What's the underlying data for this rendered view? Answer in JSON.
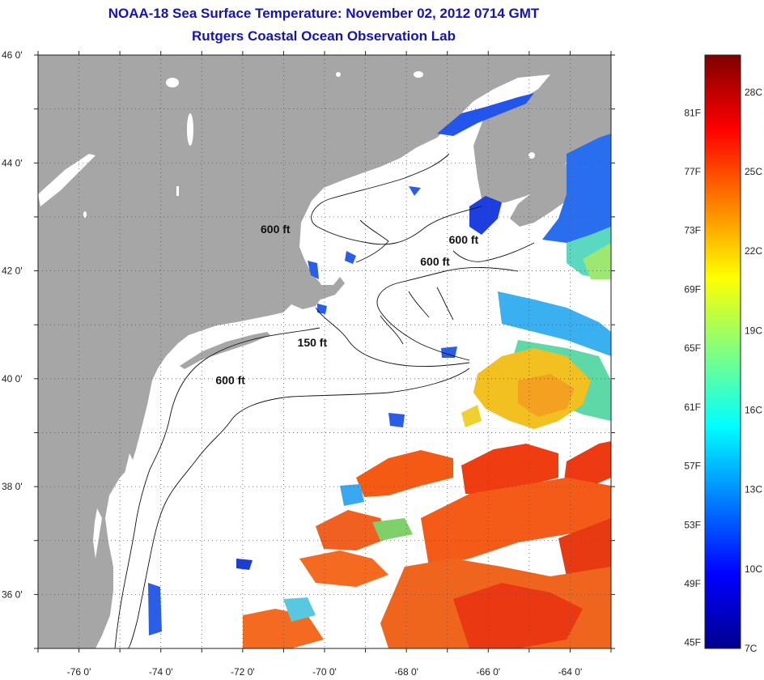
{
  "header": {
    "title": "NOAA-18 Sea Surface Temperature:  November 02, 2012 0714 GMT",
    "subtitle": "Rutgers Coastal Ocean Observation Lab"
  },
  "map": {
    "lon_range": [
      -77,
      -63
    ],
    "lat_range": [
      35,
      46
    ],
    "lon_ticks": [
      {
        "value": -76,
        "label": "-76 0'"
      },
      {
        "value": -74,
        "label": "-74 0'"
      },
      {
        "value": -72,
        "label": "-72 0'"
      },
      {
        "value": -70,
        "label": "-70 0'"
      },
      {
        "value": -68,
        "label": "-68 0'"
      },
      {
        "value": -66,
        "label": "-66 0'"
      },
      {
        "value": -64,
        "label": "-64 0'"
      }
    ],
    "lat_ticks": [
      {
        "value": 46,
        "label": "46 0'"
      },
      {
        "value": 44,
        "label": "44 0'"
      },
      {
        "value": 42,
        "label": "42 0'"
      },
      {
        "value": 40,
        "label": "40 0'"
      },
      {
        "value": 38,
        "label": "38 0'"
      },
      {
        "value": 36,
        "label": "36 0'"
      }
    ],
    "grid": "dotted",
    "colors": {
      "land": "#a6a6a6",
      "ocean_no_data": "#ffffff",
      "contour": "#111111"
    },
    "contour_labels": [
      {
        "text": "600 ft",
        "lon": -71.2,
        "lat": 42.7
      },
      {
        "text": "600 ft",
        "lon": -66.6,
        "lat": 42.5
      },
      {
        "text": "600 ft",
        "lon": -67.3,
        "lat": 42.1
      },
      {
        "text": "150 ft",
        "lon": -70.3,
        "lat": 40.6
      },
      {
        "text": "600 ft",
        "lon": -72.3,
        "lat": 39.9
      }
    ]
  },
  "colorbar": {
    "min_c": 7,
    "max_c": 29.4,
    "celsius_labels": [
      {
        "value": 28,
        "label": "28C"
      },
      {
        "value": 25,
        "label": "25C"
      },
      {
        "value": 22,
        "label": "22C"
      },
      {
        "value": 19,
        "label": "19C"
      },
      {
        "value": 16,
        "label": "16C"
      },
      {
        "value": 13,
        "label": "13C"
      },
      {
        "value": 10,
        "label": "10C"
      },
      {
        "value": 7,
        "label": "7C"
      }
    ],
    "fahrenheit_labels": [
      {
        "value": 81,
        "label": "81F"
      },
      {
        "value": 77,
        "label": "77F"
      },
      {
        "value": 73,
        "label": "73F"
      },
      {
        "value": 69,
        "label": "69F"
      },
      {
        "value": 65,
        "label": "65F"
      },
      {
        "value": 61,
        "label": "61F"
      },
      {
        "value": 57,
        "label": "57F"
      },
      {
        "value": 53,
        "label": "53F"
      },
      {
        "value": 49,
        "label": "49F"
      },
      {
        "value": 45,
        "label": "45F"
      }
    ]
  }
}
